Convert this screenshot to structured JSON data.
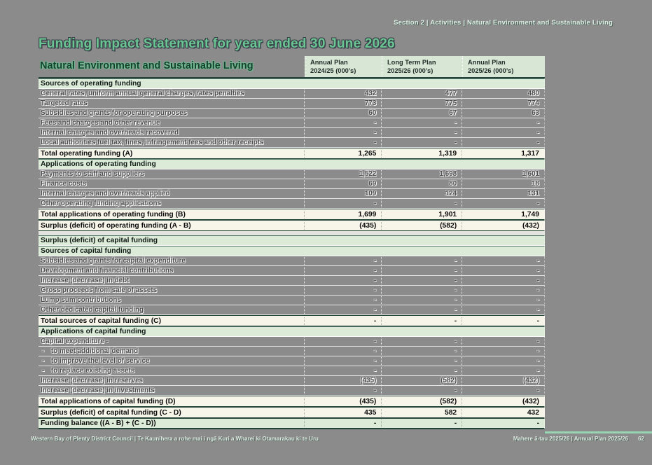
{
  "breadcrumb": {
    "text": "Section 2  |  Activities  |  Natural Environment and Sustainable Living"
  },
  "title": {
    "text": "Funding Impact Statement for year ended 30 June 2026"
  },
  "table": {
    "title": "Natural Environment and Sustainable Living",
    "columns": [
      {
        "line1": "Annual Plan",
        "line2": "2024/25 (000’s)"
      },
      {
        "line1": "Long Term Plan",
        "line2": "2025/26 (000’s)"
      },
      {
        "line1": "Annual Plan",
        "line2": "2025/26 (000’s)"
      }
    ],
    "rows": [
      {
        "type": "section",
        "label": "Sources of operating funding"
      },
      {
        "type": "data",
        "label": "General rates, uniform annual general charges, rates penalties",
        "values": [
          "432",
          "477",
          "480"
        ]
      },
      {
        "type": "data",
        "label": "Targeted rates",
        "values": [
          "773",
          "775",
          "774"
        ]
      },
      {
        "type": "data",
        "label": "Subsidies and grants for operating purposes",
        "values": [
          "60",
          "67",
          "63"
        ]
      },
      {
        "type": "data",
        "label": "Fees and charges and other revenue",
        "values": [
          "-",
          "-",
          "-"
        ]
      },
      {
        "type": "data",
        "label": "Internal charges and overheads recovered",
        "values": [
          "-",
          "-",
          "-"
        ]
      },
      {
        "type": "data",
        "label": "Local authorities fuel tax, fines, infringement fees and other receipts",
        "values": [
          "-",
          "-",
          "-"
        ]
      },
      {
        "type": "total",
        "label": "Total operating funding (A)",
        "values": [
          "1,265",
          "1,319",
          "1,317"
        ]
      },
      {
        "type": "section",
        "label": "Applications of operating funding"
      },
      {
        "type": "data",
        "label": "Payments to staff and suppliers",
        "values": [
          "1,522",
          "1,698",
          "1,601"
        ]
      },
      {
        "type": "data",
        "label": "Finance costs",
        "values": [
          "69",
          "80",
          "18"
        ]
      },
      {
        "type": "data",
        "label": "Internal charges and overheads applied",
        "values": [
          "109",
          "124",
          "131"
        ]
      },
      {
        "type": "data",
        "label": "Other operating funding applications",
        "values": [
          "-",
          "-",
          "-"
        ]
      },
      {
        "type": "total",
        "label": "Total applications of operating funding (B)",
        "values": [
          "1,699",
          "1,901",
          "1,749"
        ]
      },
      {
        "type": "total",
        "label": "Surplus (deficit) of operating funding (A - B)",
        "values": [
          "(435)",
          "(582)",
          "(432)"
        ]
      },
      {
        "type": "gap"
      },
      {
        "type": "section",
        "label": "Surplus (deficit) of capital funding"
      },
      {
        "type": "section",
        "label": "Sources of capital funding"
      },
      {
        "type": "data",
        "label": "Subsidies and grants for capital expenditure",
        "values": [
          "-",
          "-",
          "-"
        ]
      },
      {
        "type": "data",
        "label": "Development and financial contributions",
        "values": [
          "-",
          "-",
          "-"
        ]
      },
      {
        "type": "data",
        "label": "Increase (decrease) in debt",
        "values": [
          "-",
          "-",
          "-"
        ]
      },
      {
        "type": "data",
        "label": "Gross proceeds from sale of assets",
        "values": [
          "-",
          "-",
          "-"
        ]
      },
      {
        "type": "data",
        "label": "Lump sum contributions",
        "values": [
          "-",
          "-",
          "-"
        ]
      },
      {
        "type": "data",
        "label": "Other dedicated capital funding",
        "values": [
          "-",
          "-",
          "-"
        ]
      },
      {
        "type": "total",
        "label": "Total sources of capital funding (C)",
        "values": [
          "-",
          "-",
          "-"
        ]
      },
      {
        "type": "section",
        "label": "Applications of capital funding"
      },
      {
        "type": "data",
        "label": "Capital expenditure -",
        "values": [
          "-",
          "-",
          "-"
        ]
      },
      {
        "type": "data",
        "bullet": "-",
        "indent": true,
        "label": "to meet additional demand",
        "values": [
          "-",
          "-",
          "-"
        ]
      },
      {
        "type": "data",
        "bullet": "-",
        "indent": true,
        "label": "to improve the level of service",
        "values": [
          "-",
          "-",
          "-"
        ]
      },
      {
        "type": "data",
        "bullet": "-",
        "indent": true,
        "label": "to replace existing assets",
        "values": [
          "-",
          "-",
          "-"
        ]
      },
      {
        "type": "data",
        "label": "Increase (decrease) in reserves",
        "values": [
          "(435)",
          "(582)",
          "(432)"
        ]
      },
      {
        "type": "data",
        "label": "Increase (decrease) in investments",
        "values": [
          "-",
          "-",
          "-"
        ]
      },
      {
        "type": "total",
        "label": "Total applications of capital funding (D)",
        "values": [
          "(435)",
          "(582)",
          "(432)"
        ]
      },
      {
        "type": "total",
        "label": "Surplus (deficit) of capital funding (C - D)",
        "values": [
          "435",
          "582",
          "432"
        ]
      },
      {
        "type": "balance",
        "label": "Funding balance ((A - B) + (C - D))",
        "values": [
          "-",
          "-",
          "-"
        ]
      }
    ]
  },
  "footer": {
    "left": "Western Bay of Plenty District Council  |  Te Kaunihera a rohe mai i ngā Kuri a Wharei ki Otamarakau ki te Uru",
    "right": "Mahere ā-tau 2025/26  |  Annual Plan 2025/26",
    "page_number": "62"
  },
  "colors": {
    "page_bg": "#8b8b8b",
    "mint_row": "#dcead8",
    "header_mint": "#d8e6d5",
    "cream_row": "#f7f4e9",
    "title_green": "#6bc593",
    "dark_green_border": "#24443a",
    "accent_line": "#98d5b3"
  }
}
